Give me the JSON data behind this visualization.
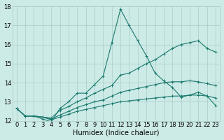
{
  "xlabel": "Humidex (Indice chaleur)",
  "bg_color": "#cceae6",
  "grid_color": "#aaccc8",
  "line_color": "#1a7a6e",
  "x_values": [
    0,
    1,
    2,
    3,
    4,
    5,
    6,
    7,
    8,
    9,
    10,
    11,
    12,
    13,
    14,
    15,
    16,
    17,
    18,
    19,
    20,
    21,
    22,
    23
  ],
  "series": [
    [
      12.65,
      12.25,
      12.25,
      12.1,
      11.95,
      12.65,
      13.0,
      13.45,
      13.45,
      13.9,
      14.35,
      16.1,
      17.85,
      17.0,
      16.2,
      15.4,
      14.5,
      14.1,
      13.75,
      13.25,
      13.35,
      13.5,
      13.3,
      12.8
    ],
    [
      12.65,
      12.25,
      12.25,
      12.2,
      12.15,
      12.55,
      12.75,
      13.0,
      13.2,
      13.45,
      13.65,
      13.85,
      14.4,
      14.5,
      14.75,
      15.0,
      15.2,
      15.5,
      15.8,
      16.0,
      16.1,
      16.2,
      15.8,
      15.6
    ],
    [
      12.65,
      12.25,
      12.25,
      12.2,
      12.1,
      12.3,
      12.5,
      12.7,
      12.85,
      13.0,
      13.1,
      13.3,
      13.5,
      13.6,
      13.7,
      13.8,
      13.9,
      14.0,
      14.05,
      14.05,
      14.1,
      14.05,
      13.95,
      13.85
    ],
    [
      12.65,
      12.25,
      12.25,
      12.2,
      12.05,
      12.2,
      12.35,
      12.5,
      12.6,
      12.7,
      12.8,
      12.9,
      13.0,
      13.05,
      13.1,
      13.15,
      13.2,
      13.25,
      13.3,
      13.3,
      13.35,
      13.35,
      13.3,
      13.2
    ]
  ],
  "ylim": [
    12,
    18
  ],
  "yticks": [
    12,
    13,
    14,
    15,
    16,
    17,
    18
  ],
  "xlim": [
    -0.5,
    23.5
  ],
  "xticks": [
    0,
    1,
    2,
    3,
    4,
    5,
    6,
    7,
    8,
    9,
    10,
    11,
    12,
    13,
    14,
    15,
    16,
    17,
    18,
    19,
    20,
    21,
    22,
    23
  ],
  "xlabel_fontsize": 7,
  "tick_fontsize": 6,
  "marker": "+",
  "marker_size": 3,
  "linewidth": 0.8
}
